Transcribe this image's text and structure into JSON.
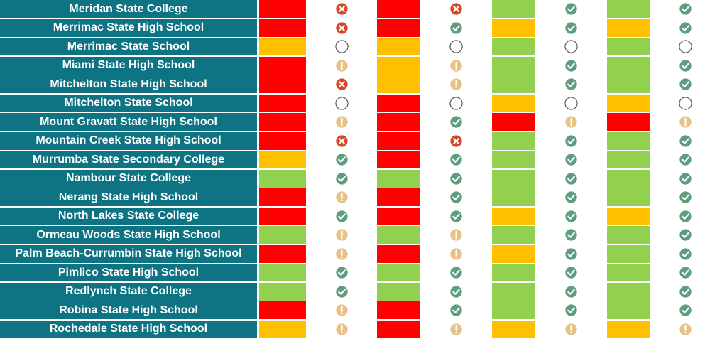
{
  "colors": {
    "red": "#ff0000",
    "amber": "#ffc000",
    "green": "#92d050",
    "header": "#0e7383",
    "icon_cross": "#d9472b",
    "icon_check": "#5e9e7e",
    "icon_warn": "#e8c186"
  },
  "rows": [
    {
      "school": "Meridan State College",
      "c1": "red",
      "i1": "cross",
      "c2": "red",
      "i2": "cross",
      "c3": "green",
      "i3": "check",
      "c4": "green",
      "i4": "check"
    },
    {
      "school": "Merrimac State High School",
      "c1": "red",
      "i1": "cross",
      "c2": "red",
      "i2": "check",
      "c3": "amber",
      "i3": "check",
      "c4": "amber",
      "i4": "check"
    },
    {
      "school": "Merrimac State School",
      "c1": "amber",
      "i1": "empty",
      "c2": "amber",
      "i2": "empty",
      "c3": "green",
      "i3": "empty",
      "c4": "green",
      "i4": "empty"
    },
    {
      "school": "Miami State High School",
      "c1": "red",
      "i1": "warn",
      "c2": "amber",
      "i2": "warn",
      "c3": "green",
      "i3": "check",
      "c4": "green",
      "i4": "check"
    },
    {
      "school": "Mitchelton State High School",
      "c1": "red",
      "i1": "cross",
      "c2": "amber",
      "i2": "warn",
      "c3": "green",
      "i3": "check",
      "c4": "green",
      "i4": "check"
    },
    {
      "school": "Mitchelton State School",
      "c1": "red",
      "i1": "empty",
      "c2": "red",
      "i2": "empty",
      "c3": "amber",
      "i3": "empty",
      "c4": "amber",
      "i4": "empty"
    },
    {
      "school": "Mount Gravatt State High School",
      "c1": "red",
      "i1": "warn",
      "c2": "red",
      "i2": "check",
      "c3": "red",
      "i3": "warn",
      "c4": "red",
      "i4": "warn"
    },
    {
      "school": "Mountain Creek State High School",
      "c1": "red",
      "i1": "cross",
      "c2": "red",
      "i2": "cross",
      "c3": "green",
      "i3": "check",
      "c4": "green",
      "i4": "check"
    },
    {
      "school": "Murrumba State Secondary College",
      "c1": "amber",
      "i1": "check",
      "c2": "red",
      "i2": "check",
      "c3": "green",
      "i3": "check",
      "c4": "green",
      "i4": "check"
    },
    {
      "school": "Nambour State College",
      "c1": "green",
      "i1": "check",
      "c2": "green",
      "i2": "check",
      "c3": "green",
      "i3": "check",
      "c4": "green",
      "i4": "check"
    },
    {
      "school": "Nerang State High School",
      "c1": "red",
      "i1": "warn",
      "c2": "red",
      "i2": "check",
      "c3": "green",
      "i3": "check",
      "c4": "green",
      "i4": "check"
    },
    {
      "school": "North Lakes State College",
      "c1": "red",
      "i1": "check",
      "c2": "red",
      "i2": "check",
      "c3": "amber",
      "i3": "check",
      "c4": "amber",
      "i4": "check"
    },
    {
      "school": "Ormeau Woods State High School",
      "c1": "green",
      "i1": "warn",
      "c2": "green",
      "i2": "warn",
      "c3": "green",
      "i3": "check",
      "c4": "green",
      "i4": "check"
    },
    {
      "school": "Palm Beach-Currumbin State High School",
      "c1": "red",
      "i1": "warn",
      "c2": "red",
      "i2": "warn",
      "c3": "amber",
      "i3": "check",
      "c4": "green",
      "i4": "check"
    },
    {
      "school": "Pimlico State High School",
      "c1": "green",
      "i1": "check",
      "c2": "green",
      "i2": "check",
      "c3": "green",
      "i3": "check",
      "c4": "green",
      "i4": "check"
    },
    {
      "school": "Redlynch State College",
      "c1": "green",
      "i1": "check",
      "c2": "green",
      "i2": "check",
      "c3": "green",
      "i3": "check",
      "c4": "green",
      "i4": "check"
    },
    {
      "school": "Robina State High School",
      "c1": "red",
      "i1": "warn",
      "c2": "red",
      "i2": "check",
      "c3": "green",
      "i3": "check",
      "c4": "green",
      "i4": "check"
    },
    {
      "school": "Rochedale State High School",
      "c1": "amber",
      "i1": "warn",
      "c2": "red",
      "i2": "warn",
      "c3": "amber",
      "i3": "warn",
      "c4": "amber",
      "i4": "warn"
    }
  ]
}
